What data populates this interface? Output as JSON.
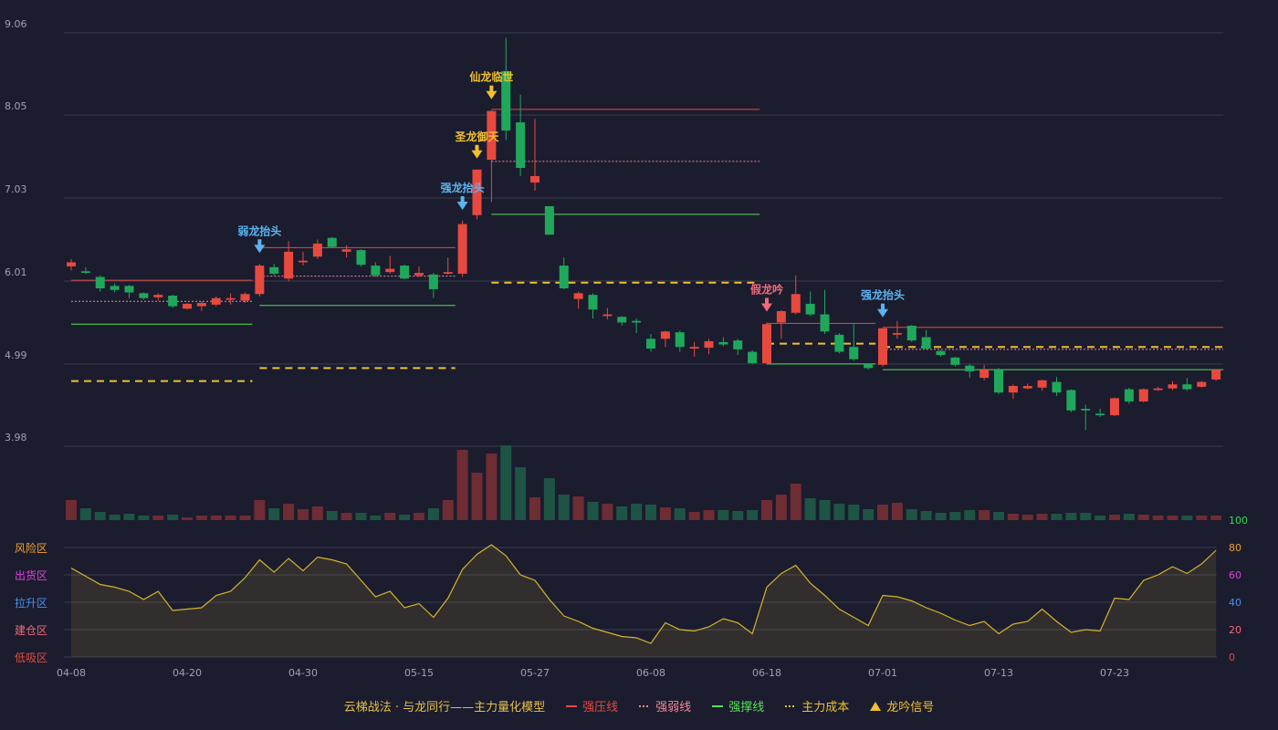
{
  "chart_data": {
    "type": "candlestick",
    "title": "云梯战法 · 与龙同行——主力量化模型",
    "title_color": "#e6c04a",
    "up_color": "#e8493f",
    "down_color": "#1fa85b",
    "vol_up_color": "#6e2c33",
    "vol_down_color": "#1e5444",
    "grid_color": "#393b52",
    "ylim": [
      3.98,
      9.06
    ],
    "yticks": [
      3.98,
      4.99,
      6.01,
      7.03,
      8.05,
      9.06
    ],
    "categories": [
      "04-08",
      null,
      null,
      null,
      null,
      null,
      null,
      null,
      "04-20",
      null,
      null,
      null,
      null,
      null,
      null,
      null,
      "04-30",
      null,
      null,
      null,
      null,
      null,
      null,
      null,
      "05-15",
      null,
      null,
      null,
      null,
      null,
      null,
      null,
      "05-27",
      null,
      null,
      null,
      null,
      null,
      null,
      null,
      "06-08",
      null,
      null,
      null,
      null,
      null,
      null,
      null,
      "06-18",
      null,
      null,
      null,
      null,
      null,
      null,
      null,
      "07-01",
      null,
      null,
      null,
      null,
      null,
      null,
      null,
      "07-13",
      null,
      null,
      null,
      null,
      null,
      null,
      null,
      "07-23",
      null,
      null,
      null,
      null,
      null,
      null,
      null
    ],
    "ohlc": [
      [
        6.19,
        6.28,
        6.14,
        6.24
      ],
      [
        6.13,
        6.18,
        6.1,
        6.11
      ],
      [
        6.06,
        6.08,
        5.88,
        5.92
      ],
      [
        5.95,
        5.98,
        5.87,
        5.9
      ],
      [
        5.95,
        5.96,
        5.8,
        5.87
      ],
      [
        5.86,
        5.87,
        5.78,
        5.8
      ],
      [
        5.81,
        5.86,
        5.77,
        5.84
      ],
      [
        5.83,
        5.84,
        5.68,
        5.7
      ],
      [
        5.67,
        5.74,
        5.66,
        5.73
      ],
      [
        5.7,
        5.76,
        5.64,
        5.74
      ],
      [
        5.72,
        5.82,
        5.7,
        5.8
      ],
      [
        5.78,
        5.86,
        5.72,
        5.8
      ],
      [
        5.77,
        5.87,
        5.74,
        5.85
      ],
      [
        5.85,
        6.22,
        5.82,
        6.2
      ],
      [
        6.18,
        6.22,
        6.08,
        6.1
      ],
      [
        6.04,
        6.5,
        6.01,
        6.37
      ],
      [
        6.24,
        6.37,
        6.2,
        6.26
      ],
      [
        6.31,
        6.52,
        6.28,
        6.47
      ],
      [
        6.54,
        6.55,
        6.42,
        6.43
      ],
      [
        6.37,
        6.45,
        6.3,
        6.4
      ],
      [
        6.39,
        6.4,
        6.19,
        6.21
      ],
      [
        6.2,
        6.24,
        6.06,
        6.08
      ],
      [
        6.12,
        6.32,
        6.1,
        6.16
      ],
      [
        6.2,
        6.21,
        6.03,
        6.04
      ],
      [
        6.08,
        6.19,
        6.06,
        6.11
      ],
      [
        6.09,
        6.11,
        5.8,
        5.91
      ],
      [
        6.1,
        6.3,
        6.09,
        6.12
      ],
      [
        6.1,
        6.75,
        6.06,
        6.71
      ],
      [
        6.82,
        7.38,
        6.77,
        7.38
      ],
      [
        7.5,
        8.11,
        6.98,
        8.1
      ],
      [
        8.59,
        9.0,
        7.74,
        7.86
      ],
      [
        7.96,
        8.3,
        7.3,
        7.4
      ],
      [
        7.22,
        8.0,
        7.12,
        7.3
      ],
      [
        6.93,
        6.93,
        6.58,
        6.58
      ],
      [
        6.2,
        6.3,
        5.91,
        5.92
      ],
      [
        5.79,
        5.88,
        5.67,
        5.86
      ],
      [
        5.84,
        5.86,
        5.55,
        5.66
      ],
      [
        5.58,
        5.68,
        5.54,
        5.6
      ],
      [
        5.57,
        5.58,
        5.46,
        5.5
      ],
      [
        5.52,
        5.55,
        5.37,
        5.5
      ],
      [
        5.3,
        5.36,
        5.14,
        5.18
      ],
      [
        5.3,
        5.4,
        5.2,
        5.39
      ],
      [
        5.38,
        5.4,
        5.14,
        5.2
      ],
      [
        5.18,
        5.26,
        5.08,
        5.2
      ],
      [
        5.19,
        5.3,
        5.11,
        5.27
      ],
      [
        5.26,
        5.32,
        5.21,
        5.23
      ],
      [
        5.28,
        5.3,
        5.1,
        5.17
      ],
      [
        5.14,
        5.16,
        4.99,
        5.0
      ],
      [
        5.0,
        5.5,
        4.99,
        5.48
      ],
      [
        5.5,
        5.65,
        5.3,
        5.64
      ],
      [
        5.62,
        6.08,
        5.6,
        5.85
      ],
      [
        5.73,
        5.88,
        5.58,
        5.6
      ],
      [
        5.6,
        5.9,
        5.36,
        5.39
      ],
      [
        5.35,
        5.37,
        5.12,
        5.14
      ],
      [
        5.2,
        5.48,
        5.03,
        5.05
      ],
      [
        4.99,
        5.0,
        4.92,
        4.94
      ],
      [
        4.98,
        5.43,
        4.96,
        5.43
      ],
      [
        5.35,
        5.52,
        5.3,
        5.37
      ],
      [
        5.46,
        5.47,
        5.26,
        5.28
      ],
      [
        5.32,
        5.41,
        5.17,
        5.18
      ],
      [
        5.15,
        5.16,
        5.08,
        5.1
      ],
      [
        5.07,
        5.08,
        4.96,
        4.98
      ],
      [
        4.97,
        4.99,
        4.82,
        4.9
      ],
      [
        4.82,
        4.98,
        4.79,
        4.92
      ],
      [
        4.92,
        4.94,
        4.62,
        4.64
      ],
      [
        4.64,
        4.74,
        4.56,
        4.72
      ],
      [
        4.69,
        4.75,
        4.68,
        4.72
      ],
      [
        4.7,
        4.8,
        4.66,
        4.79
      ],
      [
        4.77,
        4.83,
        4.6,
        4.64
      ],
      [
        4.67,
        4.68,
        4.4,
        4.42
      ],
      [
        4.44,
        4.49,
        4.18,
        4.42
      ],
      [
        4.38,
        4.44,
        4.34,
        4.36
      ],
      [
        4.36,
        4.58,
        4.35,
        4.57
      ],
      [
        4.68,
        4.7,
        4.5,
        4.53
      ],
      [
        4.53,
        4.69,
        4.52,
        4.68
      ],
      [
        4.67,
        4.71,
        4.66,
        4.69
      ],
      [
        4.69,
        4.78,
        4.67,
        4.74
      ],
      [
        4.74,
        4.82,
        4.66,
        4.68
      ],
      [
        4.71,
        4.78,
        4.7,
        4.77
      ],
      [
        4.8,
        4.93,
        4.78,
        4.92
      ]
    ],
    "volume": [
      22,
      13,
      9,
      6,
      7,
      5,
      5,
      6,
      3,
      5,
      5,
      5,
      5,
      22,
      13,
      18,
      12,
      15,
      10,
      8,
      8,
      5,
      8,
      6,
      8,
      13,
      22,
      77,
      52,
      73,
      82,
      58,
      25,
      46,
      28,
      26,
      20,
      18,
      15,
      18,
      17,
      14,
      13,
      9,
      11,
      11,
      10,
      11,
      22,
      28,
      40,
      24,
      22,
      18,
      17,
      12,
      17,
      19,
      12,
      10,
      8,
      9,
      11,
      11,
      9,
      7,
      6,
      7,
      7,
      8,
      8,
      5,
      6,
      7,
      6,
      5,
      5,
      5,
      5,
      5
    ],
    "indicator": {
      "color": "#d4b52c",
      "ylim": [
        0,
        100
      ],
      "yticks": [
        0,
        20,
        40,
        60,
        80,
        100
      ],
      "ytick_colors": [
        "#e8493f",
        "#f06a7a",
        "#4a8ff0",
        "#e040e0",
        "#f0a030",
        "#33dd55"
      ],
      "values": [
        65,
        59,
        53,
        51,
        48,
        42,
        48,
        34,
        35,
        36,
        45,
        48,
        58,
        71,
        62,
        72,
        63,
        73,
        71,
        68,
        56,
        44,
        48,
        36,
        39,
        29,
        43,
        64,
        75,
        82,
        74,
        60,
        56,
        42,
        30,
        26,
        21,
        18,
        15,
        14,
        10,
        25,
        20,
        19,
        22,
        28,
        25,
        17,
        51,
        61,
        67,
        54,
        45,
        35,
        29,
        23,
        45,
        44,
        41,
        36,
        32,
        27,
        23,
        26,
        17,
        24,
        26,
        35,
        26,
        18,
        20,
        19,
        43,
        42,
        56,
        60,
        66,
        61,
        68,
        78
      ],
      "zones": [
        {
          "label": "风险区",
          "value": 80,
          "color": "#f0a030"
        },
        {
          "label": "出货区",
          "value": 60,
          "color": "#e040e0"
        },
        {
          "label": "拉升区",
          "value": 40,
          "color": "#4a8ff0"
        },
        {
          "label": "建仓区",
          "value": 20,
          "color": "#f06a7a"
        },
        {
          "label": "低吸区",
          "value": 0,
          "color": "#e8493f"
        }
      ]
    },
    "legend": [
      {
        "name": "强压线",
        "color": "#e8493f",
        "dash": "solid",
        "segments": [
          {
            "from": 0,
            "to": 12,
            "value": 6.02
          },
          {
            "from": 13,
            "to": 26,
            "value": 6.42
          },
          {
            "from": 29,
            "to": 47,
            "value": 8.12
          },
          {
            "from": 48,
            "to": 55,
            "value": 5.49
          },
          {
            "from": 56,
            "to": 79,
            "value": 5.44
          }
        ]
      },
      {
        "name": "强弱线",
        "color": "#f08a95",
        "dash": "dotted",
        "segments": [
          {
            "from": 0,
            "to": 12,
            "value": 5.76
          },
          {
            "from": 13,
            "to": 26,
            "value": 6.07
          },
          {
            "from": 29,
            "to": 47,
            "value": 7.48
          },
          {
            "from": 56,
            "to": 79,
            "value": 5.17
          }
        ]
      },
      {
        "name": "强撑线",
        "color": "#55e055",
        "dash": "solid",
        "segments": [
          {
            "from": 0,
            "to": 12,
            "value": 5.48
          },
          {
            "from": 13,
            "to": 26,
            "value": 5.71
          },
          {
            "from": 29,
            "to": 47,
            "value": 6.83
          },
          {
            "from": 48,
            "to": 55,
            "value": 4.99
          },
          {
            "from": 56,
            "to": 79,
            "value": 4.92
          }
        ]
      },
      {
        "name": "主力成本",
        "color": "#f0c030",
        "dash": "dashed",
        "segments": [
          {
            "from": 0,
            "to": 12,
            "value": 4.78
          },
          {
            "from": 13,
            "to": 26,
            "value": 4.94
          },
          {
            "from": 29,
            "to": 47,
            "value": 5.99
          },
          {
            "from": 48,
            "to": 55,
            "value": 5.24
          },
          {
            "from": 56,
            "to": 79,
            "value": 5.2
          }
        ]
      },
      {
        "name": "龙吟信号",
        "color": "#f0c030",
        "dash": "marker"
      }
    ],
    "signals": [
      {
        "index": 13,
        "label": "弱龙抬头",
        "color": "#5ab4f0"
      },
      {
        "index": 27,
        "label": "强龙抬头",
        "color": "#5ab4f0"
      },
      {
        "index": 28,
        "label": "圣龙御天",
        "color": "#f0c030"
      },
      {
        "index": 29,
        "label": "仙龙临世",
        "color": "#f0c030"
      },
      {
        "index": 48,
        "label": "假龙吟",
        "color": "#f06a7a"
      },
      {
        "index": 56,
        "label": "强龙抬头",
        "color": "#5ab4f0"
      }
    ]
  }
}
